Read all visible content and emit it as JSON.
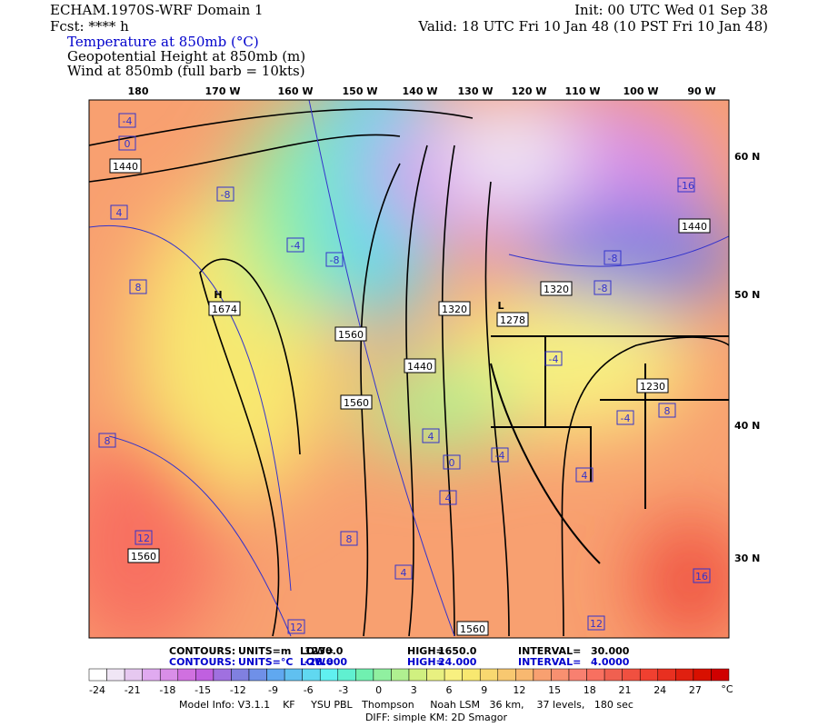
{
  "header": {
    "title": "ECHAM.1970S-WRF Domain 1",
    "fcst": "Fcst: **** h",
    "init": "Init: 00 UTC Wed 01 Sep 38",
    "valid": "Valid: 18 UTC Fri 10 Jan 48 (10 PST Fri 10 Jan 48)",
    "fields": [
      "Temperature at 850mb (°C)",
      "Geopotential Height at 850mb (m)",
      "Wind at 850mb (full barb = 10kts)"
    ]
  },
  "map": {
    "lon_labels": [
      "180",
      "170 W",
      "160 W",
      "150 W",
      "140 W",
      "130 W",
      "120 W",
      "110 W",
      "100 W",
      "90 W"
    ],
    "lat_labels": [
      "60 N",
      "50 N",
      "40 N",
      "30 N"
    ],
    "height_labels": [
      "1440",
      "1674",
      "1560",
      "1440",
      "1560",
      "1320",
      "1278",
      "1320",
      "1230",
      "1560",
      "1560",
      "1440"
    ],
    "center_labels": [
      "H",
      "L"
    ],
    "temp_labels": [
      "-4",
      "0",
      "4",
      "-8",
      "8",
      "-4",
      "-8",
      "-4",
      "0",
      "4",
      "4",
      "-16",
      "-8",
      "-8",
      "-4",
      "4",
      "8",
      "8",
      "12",
      "12",
      "16",
      "12",
      "-4",
      "4",
      "8"
    ]
  },
  "contours": [
    [
      "CONTOURS:",
      "UNITS=m",
      "LOW=",
      "1230.0",
      "HIGH=",
      "1650.0",
      "INTERVAL=",
      "30.000"
    ],
    [
      "CONTOURS:",
      "UNITS=°C",
      "LOW=",
      "-28.000",
      "HIGH=",
      "24.000",
      "INTERVAL=",
      "4.0000"
    ]
  ],
  "colorbar": {
    "ticks": [
      -24,
      -21,
      -18,
      -15,
      -12,
      -9,
      -6,
      -3,
      0,
      3,
      6,
      9,
      12,
      15,
      18,
      21,
      24,
      27
    ],
    "unit": "°C",
    "colors": [
      "#ffffff",
      "#f0e6f5",
      "#e6c8f0",
      "#e0aaf0",
      "#d98ee8",
      "#d070e0",
      "#c060e0",
      "#a070e0",
      "#8080e0",
      "#6f90e8",
      "#60a8f0",
      "#60c0f0",
      "#60d8f0",
      "#60f0f0",
      "#60f0d0",
      "#70f0b0",
      "#90f0a0",
      "#b0f090",
      "#d0f080",
      "#e8f080",
      "#f8f080",
      "#f8e870",
      "#f8d870",
      "#f8c870",
      "#f8b870",
      "#f8a070",
      "#f89070",
      "#f88070",
      "#f87060",
      "#f06050",
      "#f05040",
      "#f04030",
      "#e83020",
      "#e02010",
      "#d81000",
      "#d00000"
    ]
  },
  "footer": [
    "Model Info: V3.1.1    KF     YSU PBL   Thompson     Noah LSM   36 km,    37 levels,   180 sec",
    "DIFF: simple KM: 2D Smagor"
  ]
}
